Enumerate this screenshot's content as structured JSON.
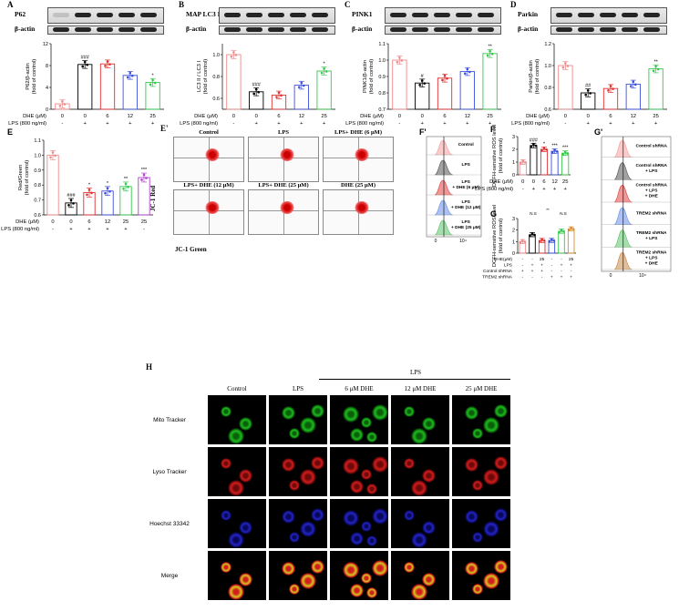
{
  "panels": {
    "A": {
      "letter": "A",
      "protein": "P62",
      "loading": "β-actin",
      "ylabel1": "P62/β-actin",
      "ylabel2": "(fold of control)"
    },
    "B": {
      "letter": "B",
      "protein": "MAP LC3 I",
      "protein2": "MAP LC3 II",
      "loading": "β-actin",
      "ylabel1": "LC3 II / LC3 I",
      "ylabel2": "(fold of control)"
    },
    "C": {
      "letter": "C",
      "protein": "PINK1",
      "loading": "β-actin",
      "ylabel1": "PINK1/β-actin",
      "ylabel2": "(fold of control)"
    },
    "D": {
      "letter": "D",
      "protein": "Parkin",
      "loading": "β-actin",
      "ylabel1": "Parkin/β-actin",
      "ylabel2": "(fold of control)"
    },
    "E": {
      "letter": "E",
      "ylabel1": "Red/Green",
      "ylabel2": "(fold of control)"
    },
    "Ep": {
      "letter": "E'",
      "y_axis": "JC-1 Red",
      "x_axis": "JC-1 Green",
      "plots": [
        "Control",
        "LPS",
        "LPS+ DHE (6 μM)",
        "LPS+ DHE (12 μM)",
        "LPS+ DHE (25 μM)",
        "DHE (25 μM)"
      ]
    },
    "Fp": {
      "letter": "F'",
      "traces": [
        "Control",
        "LPS",
        "LPS + DHE (6 μM)",
        "LPS + DHE (12 μM)",
        "LPS + DHE (25 μM)"
      ],
      "x0": "0",
      "x4": "10⁴"
    },
    "F": {
      "letter": "F",
      "ylabel1": "DCFH-sensitive ROS level",
      "ylabel2": "(fold of control)"
    },
    "G": {
      "letter": "G",
      "ylabel1": "DCFH-sensitive ROS level",
      "ylabel2": "(fold of control)",
      "row1": "DHE(μM)",
      "row2": "LPS",
      "row3": "Control shRNA",
      "row4": "TREM2 shRNA",
      "ns": "N.S",
      "sig": "**"
    },
    "Gp": {
      "letter": "G'",
      "traces": [
        "Control shRNA",
        "Control shRNA + LPS",
        "Control shRNA + LPS + DHE",
        "TREM2 shRNA",
        "TREM2 shRNA + LPS",
        "TREM2 shRNA + LPS + DHE"
      ],
      "x0": "0",
      "x4": "10⁴"
    },
    "H": {
      "letter": "H",
      "lps_header": "LPS",
      "columns": [
        "Control",
        "LPS",
        "6 μM DHE",
        "12 μM DHE",
        "25 μM DHE"
      ],
      "rows": [
        "Mito Tracker",
        "Lyso Tracker",
        "Hoechst 33342",
        "Merge"
      ]
    }
  },
  "conditions": {
    "dhe_label": "DHE (μM)",
    "lps_label": "LPS (800 ng/ml)",
    "dhe": [
      "0",
      "0",
      "6",
      "12",
      "25"
    ],
    "lps": [
      "-",
      "+",
      "+",
      "+",
      "+"
    ],
    "e_dhe": [
      "0",
      "0",
      "6",
      "12",
      "25",
      "25"
    ],
    "e_lps": [
      "-",
      "+",
      "+",
      "+",
      "+",
      "-"
    ],
    "g_dhe": [
      "-",
      "-",
      "25",
      "-",
      "-",
      "25"
    ],
    "g_lps": [
      "-",
      "+",
      "+",
      "-",
      "+",
      "+"
    ],
    "g_ctrl": [
      "+",
      "+",
      "+",
      "-",
      "-",
      "-"
    ],
    "g_trem": [
      "-",
      "-",
      "-",
      "+",
      "+",
      "+"
    ]
  },
  "colors": {
    "control": "#f08a8a",
    "lps": "#000000",
    "dhe6": "#e03030",
    "dhe12": "#3b4fd8",
    "dhe25": "#33c94a",
    "dhe25only": "#b040d0"
  },
  "chart_data": [
    {
      "type": "bar",
      "panel": "A",
      "categories": [
        "0/-",
        "0/+",
        "6/+",
        "12/+",
        "25/+"
      ],
      "values": [
        1.0,
        8.2,
        8.3,
        6.2,
        4.9
      ],
      "ylim": [
        0,
        12
      ],
      "yticks": [
        "0",
        "4",
        "8",
        "12"
      ],
      "annotations": [
        "",
        "###",
        "",
        "",
        "*"
      ]
    },
    {
      "type": "bar",
      "panel": "B",
      "categories": [
        "0/-",
        "0/+",
        "6/+",
        "12/+",
        "25/+"
      ],
      "values": [
        1.0,
        0.66,
        0.63,
        0.72,
        0.85
      ],
      "ylim": [
        0.5,
        1.1
      ],
      "yticks": [
        "0.6",
        "0.8",
        "1.0"
      ],
      "annotations": [
        "",
        "###",
        "",
        "",
        "*"
      ]
    },
    {
      "type": "bar",
      "panel": "C",
      "categories": [
        "0/-",
        "0/+",
        "6/+",
        "12/+",
        "25/+"
      ],
      "values": [
        1.0,
        0.86,
        0.89,
        0.93,
        1.04
      ],
      "ylim": [
        0.7,
        1.1
      ],
      "yticks": [
        "0.7",
        "0.8",
        "0.9",
        "1.0",
        "1.1"
      ],
      "annotations": [
        "",
        "#",
        "",
        "",
        "**"
      ]
    },
    {
      "type": "bar",
      "panel": "D",
      "categories": [
        "0/-",
        "0/+",
        "6/+",
        "12/+",
        "25/+"
      ],
      "values": [
        1.0,
        0.75,
        0.79,
        0.83,
        0.97
      ],
      "ylim": [
        0.6,
        1.2
      ],
      "yticks": [
        "0.6",
        "0.8",
        "1.0",
        "1.2"
      ],
      "annotations": [
        "",
        "##",
        "",
        "",
        "**"
      ]
    },
    {
      "type": "bar",
      "panel": "E",
      "categories": [
        "0/-",
        "0/+",
        "6/+",
        "12/+",
        "25/+",
        "25/-"
      ],
      "values": [
        1.0,
        0.68,
        0.75,
        0.76,
        0.79,
        0.85
      ],
      "ylim": [
        0.6,
        1.1
      ],
      "yticks": [
        "0.6",
        "0.7",
        "0.8",
        "0.9",
        "1.0",
        "1.1"
      ],
      "annotations": [
        "",
        "###",
        "*",
        "*",
        "**",
        "***"
      ]
    },
    {
      "type": "bar",
      "panel": "F",
      "categories": [
        "0/-",
        "0/+",
        "6/+",
        "12/+",
        "25/+"
      ],
      "values": [
        1.0,
        2.3,
        2.0,
        1.85,
        1.7
      ],
      "ylim": [
        0,
        3
      ],
      "yticks": [
        "0",
        "1",
        "2",
        "3"
      ],
      "annotations": [
        "",
        "###",
        "*",
        "***",
        "***"
      ]
    },
    {
      "type": "bar",
      "panel": "G",
      "categories": [
        "1",
        "2",
        "3",
        "4",
        "5",
        "6"
      ],
      "values": [
        1.0,
        1.6,
        1.1,
        1.1,
        1.9,
        2.1
      ],
      "ylim": [
        0,
        3
      ],
      "yticks": [
        "0",
        "1",
        "2",
        "3"
      ],
      "annotations": [
        "",
        "",
        "",
        "",
        "",
        ""
      ]
    }
  ]
}
